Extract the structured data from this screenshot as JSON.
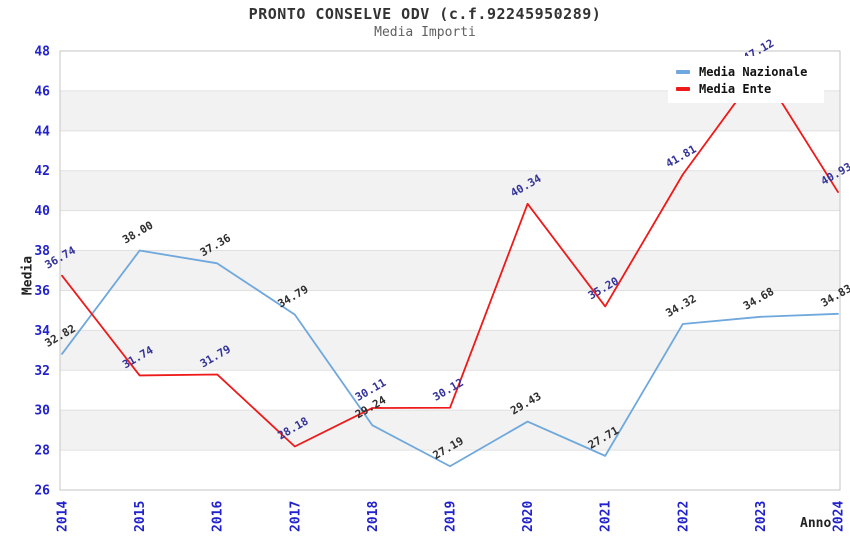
{
  "title": "PRONTO CONSELVE ODV (c.f.92245950289)",
  "subtitle": "Media Importi",
  "chart_data": {
    "type": "line",
    "x": [
      "2014",
      "2015",
      "2016",
      "2017",
      "2018",
      "2019",
      "2020",
      "2021",
      "2022",
      "2023",
      "2024"
    ],
    "xlabel": "Anno",
    "ylabel": "Media",
    "ylim": [
      26,
      48
    ],
    "ytick_step": 2,
    "grid": "horizontal",
    "alternating_bands": true,
    "legend_position": "top-right",
    "point_label_decimals": 2,
    "series": [
      {
        "name": "Media Nazionale",
        "color": "#6FA8DC",
        "label_color": "#2E2E2E",
        "values": [
          32.82,
          38.0,
          37.36,
          34.79,
          29.24,
          27.19,
          29.43,
          27.71,
          34.32,
          34.68,
          34.83
        ]
      },
      {
        "name": "Media Ente",
        "color": "#EE1919",
        "label_color": "#333399",
        "values": [
          36.74,
          31.74,
          31.79,
          28.18,
          30.11,
          30.12,
          40.34,
          35.2,
          41.81,
          47.12,
          40.93
        ]
      }
    ]
  },
  "colors": {
    "background": "#FFFFFF",
    "band": "#F2F2F2",
    "grid_line": "#E0E0E0",
    "plot_border": "#C6C6C6",
    "axis_tick_label": "#2222CC",
    "title": "#333333",
    "subtitle": "#606060",
    "axis_title": "#222222",
    "legend_text": "#111111",
    "legend_bg": "#FFFFFF"
  }
}
